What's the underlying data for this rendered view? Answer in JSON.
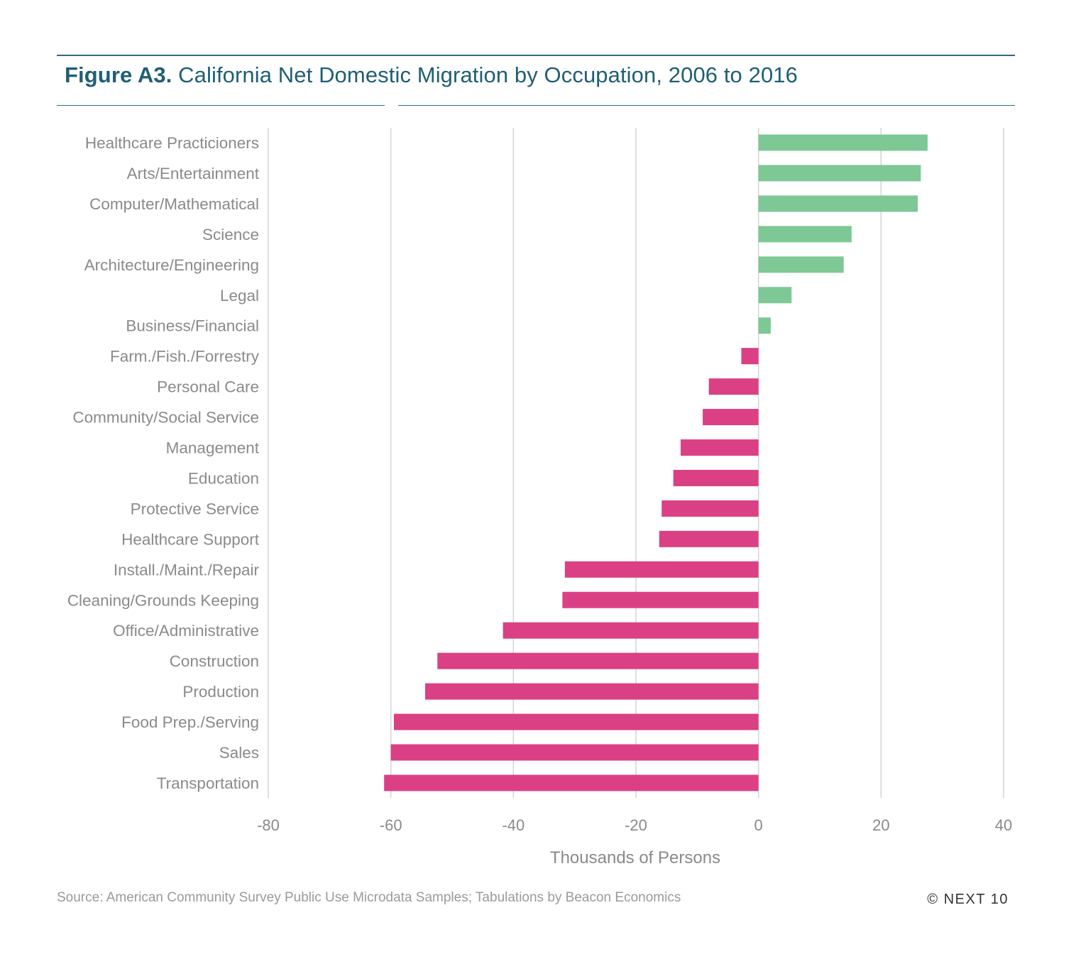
{
  "header": {
    "title_lead": "Figure A3.",
    "title_rest": " California Net Domestic Migration by Occupation, 2006 to 2016"
  },
  "footer": {
    "source": "Source: American Community Survey Public Use Microdata Samples; Tabulations by Beacon Economics",
    "copyright": "© NEXT 10"
  },
  "colors": {
    "positive": "#7ec896",
    "negative": "#db4085",
    "gridline": "#d3d3d3",
    "axis_text": "#8a8a8a",
    "title": "#1f5f73",
    "rule": "#2c6e7f"
  },
  "chart_data": {
    "type": "bar",
    "orientation": "horizontal",
    "title": "Figure A3. California Net Domestic Migration by Occupation, 2006 to 2016",
    "xlabel": "Thousands of Persons",
    "ylabel": "",
    "xlim": [
      -80,
      40
    ],
    "xticks": [
      -80,
      -60,
      -40,
      -20,
      0,
      20,
      40
    ],
    "grid": true,
    "legend": "none",
    "categories": [
      "Healthcare Practicioners",
      "Arts/Entertainment",
      "Computer/Mathematical",
      "Science",
      "Architecture/Engineering",
      "Legal",
      "Business/Financial",
      "Farm./Fish./Forrestry",
      "Personal Care",
      "Community/Social Service",
      "Management",
      "Education",
      "Protective Service",
      "Healthcare Support",
      "Install./Maint./Repair",
      "Cleaning/Grounds Keeping",
      "Office/Administrative",
      "Construction",
      "Production",
      "Food Prep./Serving",
      "Sales",
      "Transportation"
    ],
    "values": [
      27.6,
      26.5,
      26.0,
      15.2,
      13.9,
      5.4,
      2.0,
      -2.8,
      -8.1,
      -9.1,
      -12.7,
      -13.9,
      -15.8,
      -16.2,
      -31.6,
      -32.0,
      -41.7,
      -52.4,
      -54.4,
      -59.5,
      -60.0,
      -61.1
    ]
  }
}
